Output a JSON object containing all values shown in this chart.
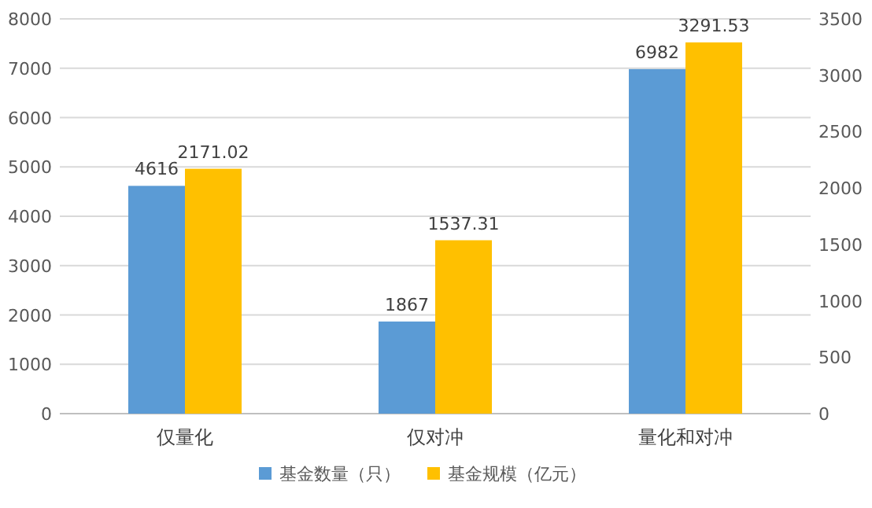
{
  "chart_data": {
    "type": "bar",
    "categories": [
      "仅量化",
      "仅对冲",
      "量化和对冲"
    ],
    "series": [
      {
        "name": "基金数量（只）",
        "color": "#5b9bd5",
        "values": [
          4616,
          1867,
          6982
        ]
      },
      {
        "name": "基金规模（亿元）",
        "color": "#ffc000",
        "values": [
          2171.02,
          1537.31,
          3291.53
        ],
        "axis": "y2"
      }
    ],
    "ylim": [
      0,
      8000
    ],
    "yticks": [
      0,
      1000,
      2000,
      3000,
      4000,
      5000,
      6000,
      7000,
      8000
    ],
    "y2lim": [
      0,
      3500
    ],
    "y2ticks": [
      0,
      500,
      1000,
      1500,
      2000,
      2500,
      3000,
      3500
    ],
    "data_labels": true,
    "grid": "y",
    "legend": "bottom"
  }
}
